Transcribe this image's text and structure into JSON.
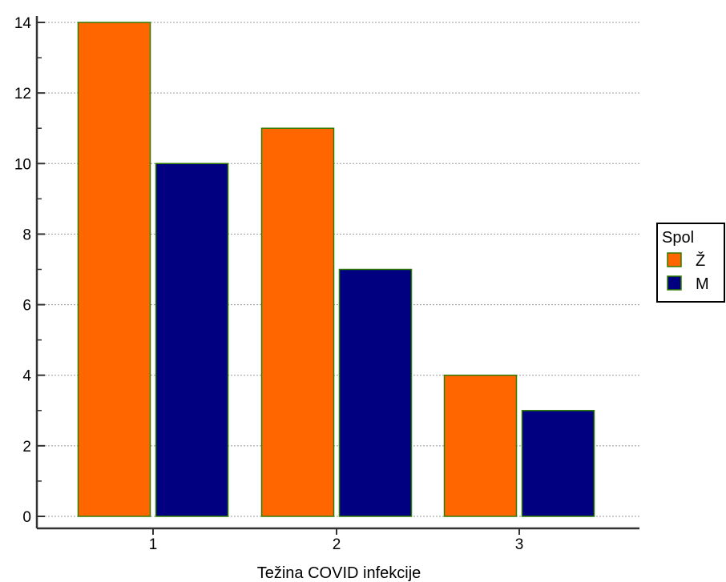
{
  "chart_data": {
    "type": "bar",
    "title": "",
    "xlabel": "Težina COVID infekcije",
    "ylabel": "",
    "categories": [
      "1",
      "2",
      "3"
    ],
    "series": [
      {
        "name": "Ž",
        "values": [
          14,
          11,
          4
        ],
        "color": "#ff6600"
      },
      {
        "name": "M",
        "values": [
          10,
          7,
          3
        ],
        "color": "#000080"
      }
    ],
    "ylim": [
      0,
      14
    ],
    "yticks": [
      "0",
      "2",
      "4",
      "6",
      "8",
      "10",
      "12",
      "14"
    ],
    "grid": "horizontal dotted",
    "bar_edge_color": "#2e7d00",
    "legend": {
      "title": "Spol",
      "position": "right"
    }
  }
}
